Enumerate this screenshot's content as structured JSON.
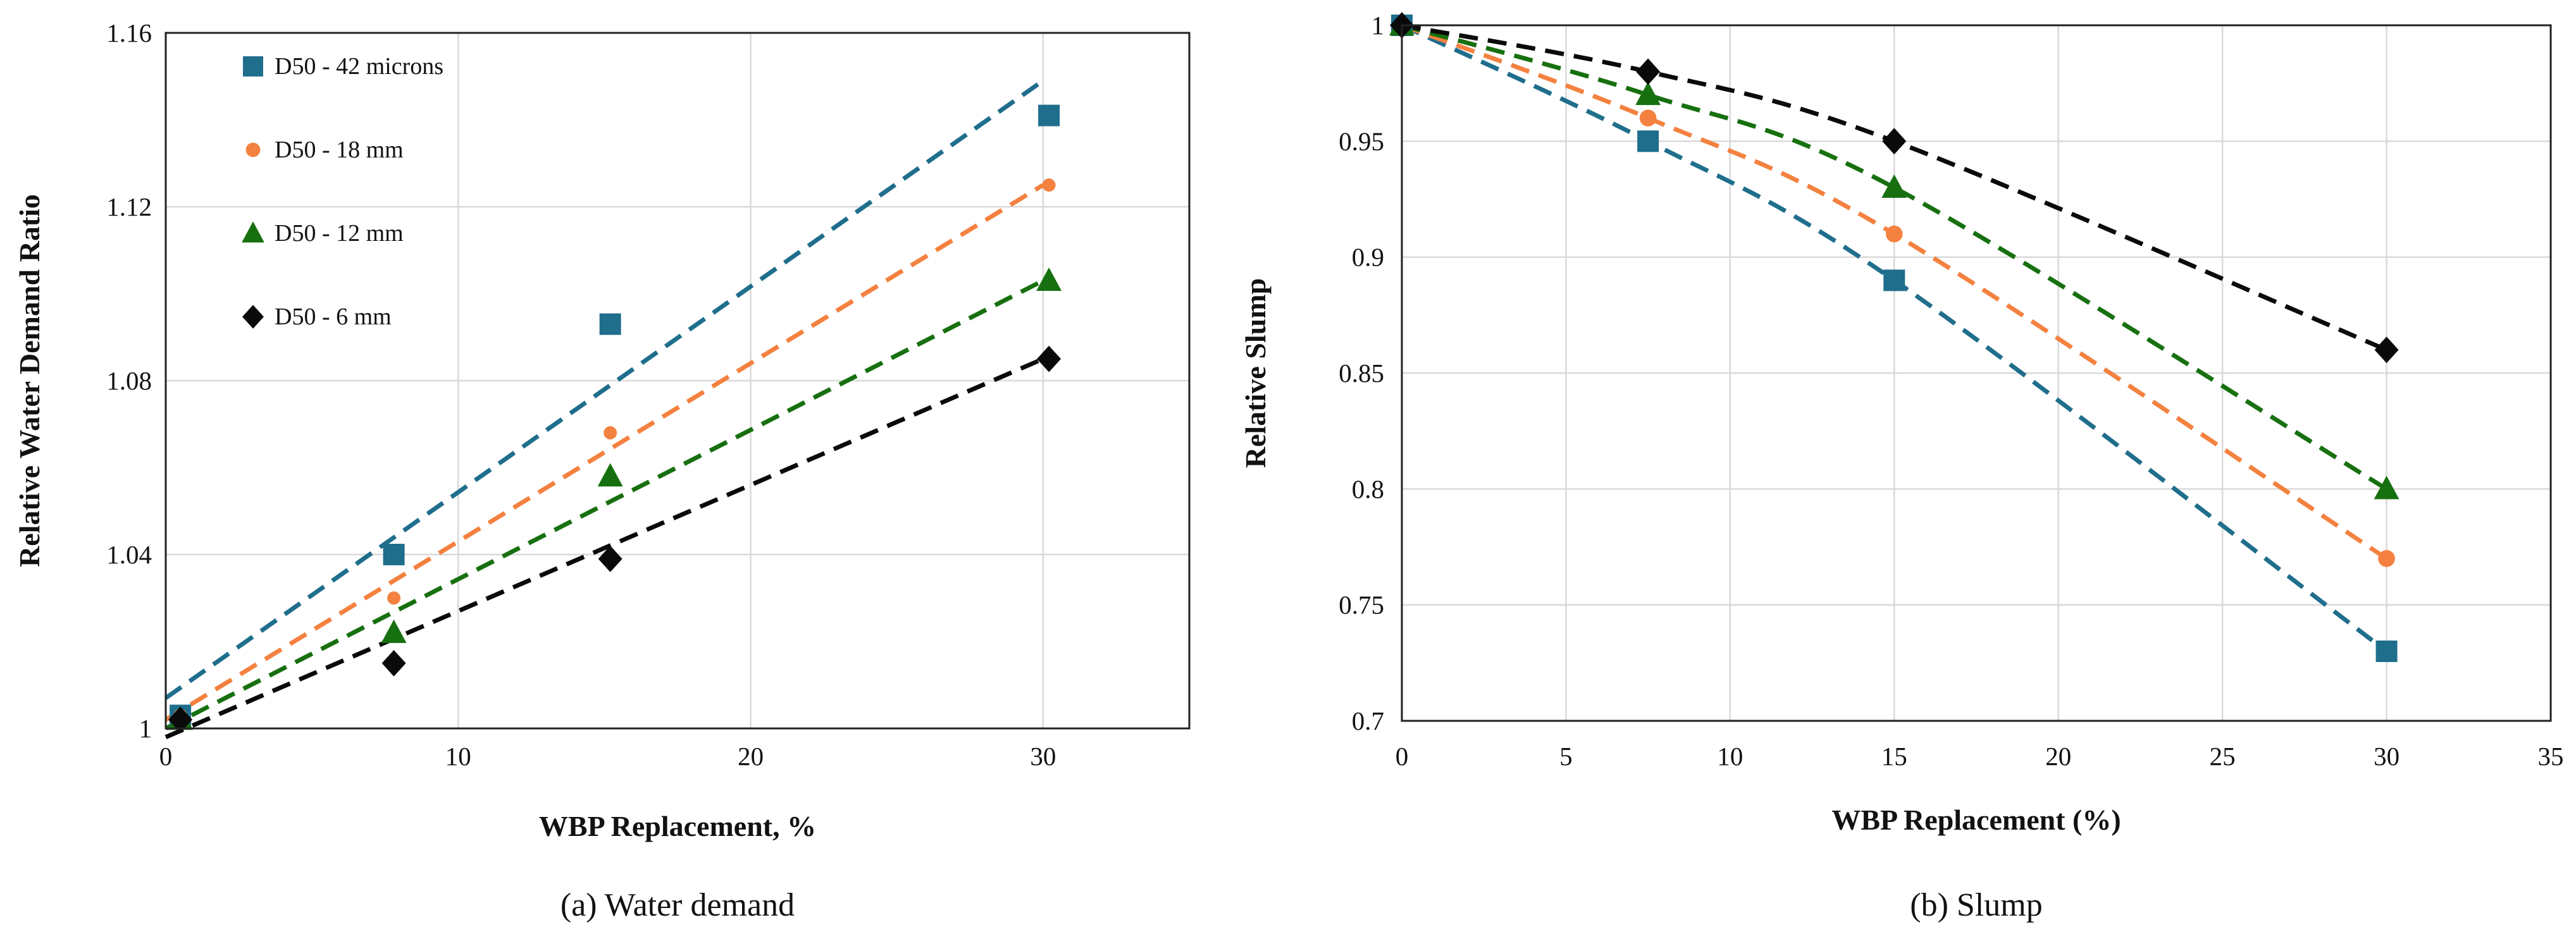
{
  "chart_data": [
    {
      "id": "a",
      "type": "scatter",
      "caption": "(a) Water demand",
      "xlabel": "WBP Replacement, %",
      "ylabel": "Relative Water  Demand Ratio",
      "xlim": [
        0,
        35
      ],
      "ylim": [
        1,
        1.16
      ],
      "xticks": [
        0,
        10,
        20,
        30
      ],
      "xtick_labels": [
        "0",
        "10",
        "20",
        "30"
      ],
      "yticks": [
        1,
        1.04,
        1.08,
        1.12,
        1.16
      ],
      "ytick_labels": [
        "1",
        "1.04",
        "1.08",
        "1.12",
        "1.16"
      ],
      "grid": true,
      "legend_position": "top-left",
      "series": [
        {
          "name": "D50 - 42 microns",
          "marker": "square",
          "color": "#1F6E8C",
          "points": [
            [
              0.5,
              1.003
            ],
            [
              7.8,
              1.04
            ],
            [
              15.2,
              1.093
            ],
            [
              30.2,
              1.141
            ]
          ],
          "trend": [
            [
              0,
              1.007
            ],
            [
              30,
              1.149
            ]
          ]
        },
        {
          "name": "D50 - 18 mm",
          "marker": "circle",
          "color": "#F4813F",
          "points": [
            [
              0.5,
              1.003
            ],
            [
              7.8,
              1.03
            ],
            [
              15.2,
              1.068
            ],
            [
              30.2,
              1.125
            ]
          ],
          "trend": [
            [
              0,
              1.002
            ],
            [
              30,
              1.125
            ]
          ]
        },
        {
          "name": "D50 - 12 mm",
          "marker": "triangle",
          "color": "#17700F",
          "points": [
            [
              0.5,
              1.002
            ],
            [
              7.8,
              1.022
            ],
            [
              15.2,
              1.058
            ],
            [
              30.2,
              1.103
            ]
          ],
          "trend": [
            [
              0,
              1.0
            ],
            [
              30,
              1.103
            ]
          ]
        },
        {
          "name": "D50 - 6 mm",
          "marker": "diamond",
          "color": "#0A0A0A",
          "points": [
            [
              0.5,
              1.002
            ],
            [
              7.8,
              1.015
            ],
            [
              15.2,
              1.039
            ],
            [
              30.2,
              1.085
            ]
          ],
          "trend": [
            [
              0,
              0.998
            ],
            [
              30,
              1.085
            ]
          ]
        }
      ]
    },
    {
      "id": "b",
      "type": "scatter",
      "caption": "(b) Slump",
      "xlabel": "WBP Replacement (%)",
      "ylabel": "Relative Slump",
      "xlim": [
        0,
        35
      ],
      "ylim": [
        0.7,
        1
      ],
      "xticks": [
        0,
        5,
        10,
        15,
        20,
        25,
        30,
        35
      ],
      "xtick_labels": [
        "0",
        "5",
        "10",
        "15",
        "20",
        "25",
        "30",
        "35"
      ],
      "yticks": [
        0.7,
        0.75,
        0.8,
        0.85,
        0.9,
        0.95,
        1
      ],
      "ytick_labels": [
        "0.7",
        "0.75",
        "0.8",
        "0.85",
        "0.9",
        "0.95",
        "1"
      ],
      "grid": true,
      "legend_position": "none",
      "series": [
        {
          "name": "D50 - 42 microns",
          "marker": "square",
          "color": "#1F6E8C",
          "points": [
            [
              0,
              1.0
            ],
            [
              7.5,
              0.95
            ],
            [
              15,
              0.89
            ],
            [
              30,
              0.73
            ]
          ]
        },
        {
          "name": "D50 - 18 mm",
          "marker": "circle",
          "color": "#F4813F",
          "points": [
            [
              0,
              1.0
            ],
            [
              7.5,
              0.96
            ],
            [
              15,
              0.91
            ],
            [
              30,
              0.77
            ]
          ]
        },
        {
          "name": "D50 - 12 mm",
          "marker": "triangle",
          "color": "#17700F",
          "points": [
            [
              0,
              1.0
            ],
            [
              7.5,
              0.97
            ],
            [
              15,
              0.93
            ],
            [
              30,
              0.8
            ]
          ]
        },
        {
          "name": "D50 - 6 mm",
          "marker": "diamond",
          "color": "#0A0A0A",
          "points": [
            [
              0,
              1.0
            ],
            [
              7.5,
              0.98
            ],
            [
              15,
              0.95
            ],
            [
              30,
              0.86
            ]
          ]
        }
      ]
    }
  ]
}
